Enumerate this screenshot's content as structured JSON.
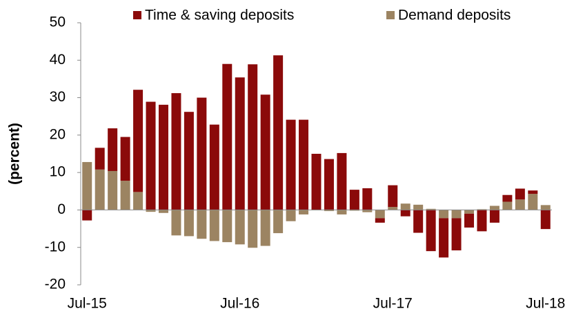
{
  "chart_data": {
    "type": "bar",
    "stacked": true,
    "y_label": "(percent)",
    "categories": [
      "Jul-15",
      null,
      null,
      null,
      null,
      null,
      null,
      null,
      null,
      null,
      null,
      null,
      "Jul-16",
      null,
      null,
      null,
      null,
      null,
      null,
      null,
      null,
      null,
      null,
      null,
      "Jul-17",
      null,
      null,
      null,
      null,
      null,
      null,
      null,
      null,
      null,
      null,
      null,
      "Jul-18"
    ],
    "series": [
      {
        "name": "Demand deposits",
        "color": "#9c8462",
        "values": [
          12.8,
          10.8,
          10.4,
          7.8,
          4.8,
          -0.5,
          -0.8,
          -6.8,
          -7.0,
          -7.7,
          -8.3,
          -8.6,
          -9.2,
          -10.1,
          -9.6,
          -6.2,
          -3.0,
          -1.2,
          -0.1,
          -0.3,
          -1.2,
          -0.2,
          -0.6,
          -2.2,
          0.8,
          1.7,
          1.4,
          0.3,
          -2.2,
          -2.2,
          -1.0,
          0.2,
          1.1,
          2.2,
          2.8,
          4.3,
          1.3
        ]
      },
      {
        "name": "Time & saving deposits",
        "color": "#8b0a0a",
        "values": [
          -2.8,
          5.8,
          11.4,
          11.7,
          27.3,
          28.9,
          28.1,
          31.2,
          26.2,
          30.0,
          22.8,
          39.0,
          35.4,
          38.9,
          30.8,
          41.3,
          24.1,
          24.1,
          15.0,
          13.6,
          15.2,
          5.4,
          5.8,
          -1.2,
          5.8,
          -1.7,
          -6.1,
          -11.0,
          -10.5,
          -8.6,
          -3.7,
          -5.7,
          -3.4,
          1.8,
          2.9,
          0.9,
          -5.1
        ]
      }
    ],
    "ylim": [
      -20,
      50
    ],
    "yticks": [
      -20,
      -10,
      0,
      10,
      20,
      30,
      40,
      50
    ]
  }
}
